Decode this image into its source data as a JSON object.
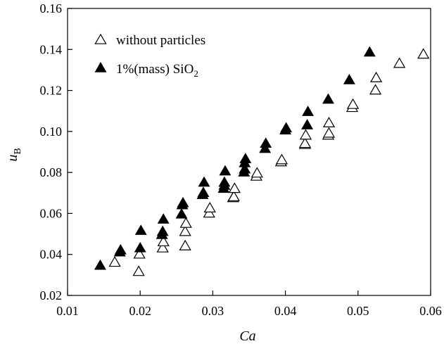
{
  "chart_data": {
    "type": "scatter",
    "title": "",
    "xlabel": "Ca",
    "ylabel_main": "u",
    "ylabel_sub": "B",
    "xlim": [
      0.01,
      0.06
    ],
    "ylim": [
      0.02,
      0.16
    ],
    "xticks": [
      0.01,
      0.02,
      0.03,
      0.04,
      0.05,
      0.06
    ],
    "yticks": [
      0.02,
      0.04,
      0.06,
      0.08,
      0.1,
      0.12,
      0.14,
      0.16
    ],
    "xtick_labels": [
      "0.01",
      "0.02",
      "0.03",
      "0.04",
      "0.05",
      "0.06"
    ],
    "ytick_labels": [
      "0.02",
      "0.04",
      "0.06",
      "0.08",
      "0.10",
      "0.12",
      "0.14",
      "0.16"
    ],
    "grid": false,
    "legend_position": "top-left",
    "series": [
      {
        "name": "without particles",
        "legend_label": "without particles",
        "marker": "open-triangle",
        "color": "#000000",
        "points": [
          [
            0.0165,
            0.036
          ],
          [
            0.0198,
            0.0315
          ],
          [
            0.0199,
            0.04
          ],
          [
            0.0231,
            0.043
          ],
          [
            0.0232,
            0.046
          ],
          [
            0.0262,
            0.044
          ],
          [
            0.0262,
            0.051
          ],
          [
            0.0263,
            0.055
          ],
          [
            0.0295,
            0.06
          ],
          [
            0.0296,
            0.0625
          ],
          [
            0.0328,
            0.0675
          ],
          [
            0.0329,
            0.068
          ],
          [
            0.033,
            0.072
          ],
          [
            0.036,
            0.078
          ],
          [
            0.0361,
            0.0795
          ],
          [
            0.0394,
            0.085
          ],
          [
            0.0395,
            0.086
          ],
          [
            0.0427,
            0.0935
          ],
          [
            0.0427,
            0.094
          ],
          [
            0.0428,
            0.098
          ],
          [
            0.0459,
            0.098
          ],
          [
            0.046,
            0.099
          ],
          [
            0.046,
            0.104
          ],
          [
            0.0492,
            0.1115
          ],
          [
            0.0493,
            0.113
          ],
          [
            0.0524,
            0.12
          ],
          [
            0.0525,
            0.126
          ],
          [
            0.0557,
            0.133
          ],
          [
            0.059,
            0.1375
          ]
        ]
      },
      {
        "name": "1%(mass) SiO2",
        "legend_label_main": "1%(mass) SiO",
        "legend_label_sub": "2",
        "marker": "filled-triangle",
        "color": "#000000",
        "points": [
          [
            0.0145,
            0.0345
          ],
          [
            0.0172,
            0.041
          ],
          [
            0.0173,
            0.042
          ],
          [
            0.02,
            0.043
          ],
          [
            0.0201,
            0.0515
          ],
          [
            0.023,
            0.0495
          ],
          [
            0.0231,
            0.051
          ],
          [
            0.0232,
            0.057
          ],
          [
            0.0257,
            0.0595
          ],
          [
            0.0258,
            0.064
          ],
          [
            0.0259,
            0.065
          ],
          [
            0.0286,
            0.069
          ],
          [
            0.0287,
            0.07
          ],
          [
            0.0288,
            0.075
          ],
          [
            0.0315,
            0.072
          ],
          [
            0.0316,
            0.0735
          ],
          [
            0.0316,
            0.075
          ],
          [
            0.0317,
            0.0805
          ],
          [
            0.0343,
            0.08
          ],
          [
            0.0344,
            0.0815
          ],
          [
            0.0344,
            0.0845
          ],
          [
            0.0345,
            0.0865
          ],
          [
            0.0372,
            0.0915
          ],
          [
            0.0373,
            0.094
          ],
          [
            0.04,
            0.1005
          ],
          [
            0.0401,
            0.1015
          ],
          [
            0.043,
            0.103
          ],
          [
            0.0431,
            0.1095
          ],
          [
            0.0459,
            0.1155
          ],
          [
            0.0488,
            0.125
          ],
          [
            0.0516,
            0.1385
          ]
        ]
      }
    ]
  }
}
